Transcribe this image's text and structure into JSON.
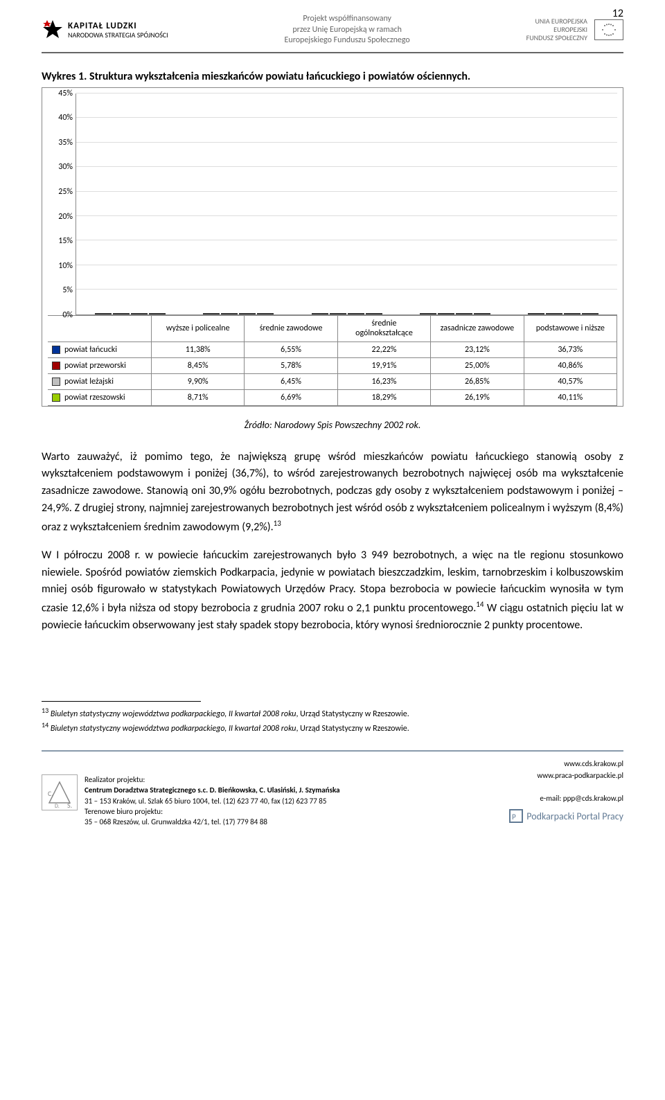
{
  "page_number": "12",
  "header": {
    "kl_name": "KAPITAŁ LUDZKI",
    "kl_sub": "NARODOWA STRATEGIA SPÓJNOŚCI",
    "center_l1": "Projekt współfinansowany",
    "center_l2": "przez Unię Europejską w ramach",
    "center_l3": "Europejskiego Funduszu Społecznego",
    "eu_l1": "UNIA EUROPEJSKA",
    "eu_l2": "EUROPEJSKI",
    "eu_l3": "FUNDUSZ SPOŁECZNY"
  },
  "chart": {
    "title": "Wykres 1. Struktura wykształcenia mieszkańców powiatu łańcuckiego i powiatów ościennych.",
    "type": "bar",
    "y_max": 45,
    "y_step": 5,
    "y_ticks": [
      "45%",
      "40%",
      "35%",
      "30%",
      "25%",
      "20%",
      "15%",
      "10%",
      "5%",
      "0%"
    ],
    "categories": [
      "wyższe i policealne",
      "średnie zawodowe",
      "średnie ogólnokształcące",
      "zasadnicze zawodowe",
      "podstawowe i niższe"
    ],
    "series": [
      {
        "name": "powiat łańcucki",
        "color": "#003399",
        "values": [
          11.38,
          6.55,
          22.22,
          23.12,
          36.73
        ],
        "labels": [
          "11,38%",
          "6,55%",
          "22,22%",
          "23,12%",
          "36,73%"
        ]
      },
      {
        "name": "powiat przeworski",
        "color": "#a00000",
        "values": [
          8.45,
          5.78,
          19.91,
          25.0,
          40.86
        ],
        "labels": [
          "8,45%",
          "5,78%",
          "19,91%",
          "25,00%",
          "40,86%"
        ]
      },
      {
        "name": "powiat leżajski",
        "color": "#bfbfbf",
        "values": [
          9.9,
          6.45,
          16.23,
          26.85,
          40.57
        ],
        "labels": [
          "9,90%",
          "6,45%",
          "16,23%",
          "26,85%",
          "40,57%"
        ]
      },
      {
        "name": "powiat rzeszowski",
        "color": "#99cc00",
        "values": [
          8.71,
          6.69,
          18.29,
          26.19,
          40.11
        ],
        "labels": [
          "8,71%",
          "6,69%",
          "18,29%",
          "26,19%",
          "40,11%"
        ]
      }
    ],
    "background_color": "#ffffff",
    "grid_color": "#dddddd",
    "border_color": "#888888"
  },
  "source": "Źródło: Narodowy Spis Powszechny 2002 rok.",
  "paragraphs": {
    "p1": "Warto zauważyć, iż pomimo tego, że największą grupę wśród mieszkańców powiatu łańcuckiego stanowią osoby z wykształceniem podstawowym i poniżej (36,7%), to wśród zarejestrowanych bezrobotnych najwięcej osób ma wykształcenie zasadnicze zawodowe. Stanowią oni 30,9% ogółu bezrobotnych, podczas gdy osoby z wykształceniem podstawowym i poniżej – 24,9%. Z drugiej strony, najmniej zarejestrowanych bezrobotnych jest wśród osób z wykształceniem policealnym i wyższym (8,4%) oraz z wykształceniem średnim zawodowym (9,2%).",
    "p1_sup": "13",
    "p2": "W I półroczu 2008 r. w powiecie łańcuckim zarejestrowanych było 3 949 bezrobotnych, a więc na tle regionu stosunkowo niewiele. Spośród powiatów ziemskich Podkarpacia, jedynie w powiatach bieszczadzkim, leskim, tarnobrzeskim i kolbuszowskim mniej osób figurowało w statystykach Powiatowych Urzędów Pracy. Stopa bezrobocia w powiecie łańcuckim wynosiła w tym czasie 12,6% i była niższa od stopy bezrobocia z grudnia 2007 roku o 2,1 punktu procentowego.",
    "p2_sup": "14",
    "p2b": " W ciągu ostatnich pięciu lat w powiecie łańcuckim obserwowany jest stały spadek stopy bezrobocia, który wynosi średniorocznie 2 punkty procentowe."
  },
  "footnotes": {
    "f13_num": "13",
    "f13_title": "Biuletyn statystyczny województwa podkarpackiego, II kwartał 2008 roku",
    "f13_rest": ", Urząd Statystyczny w Rzeszowie.",
    "f14_num": "14",
    "f14_title": "Biuletyn statystyczny województwa podkarpackiego, II kwartał 2008 roku",
    "f14_rest": ", Urząd Statystyczny w Rzeszowie."
  },
  "footer": {
    "realizer_label": "Realizator projektu:",
    "realizer_name": "Centrum Doradztwa Strategicznego s.c. D. Bieńkowska, C. Ulasiński, J. Szymańska",
    "realizer_addr": "31 – 153 Kraków, ul. Szlak 65 biuro 1004, tel. (12) 623 77 40, fax (12) 623 77 85",
    "tbp_label": "Terenowe biuro projektu:",
    "tbp_addr": "35 – 068 Rzeszów, ul. Grunwaldzka 42/1, tel. (17) 779 84 88",
    "www": "www.cds.krakow.pl",
    "www2": "www.praca-podkarpackie.pl",
    "email": "e-mail: ppp@cds.krakow.pl",
    "ppp": "Podkarpacki Portal Pracy"
  }
}
